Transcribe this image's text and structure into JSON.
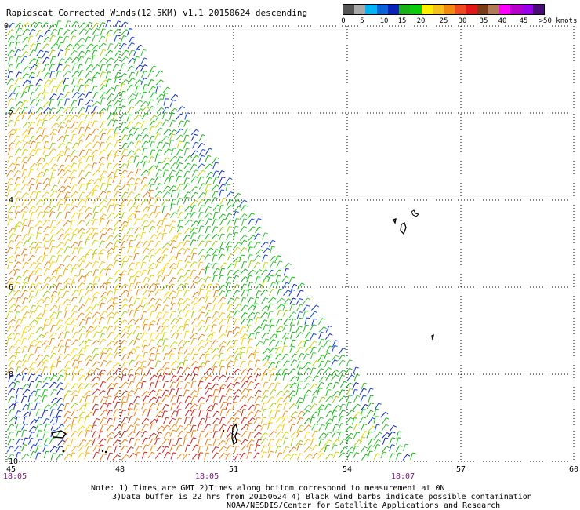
{
  "title": "Rapidscat Corrected Winds(12.5KM) v1.1 20150624 descending",
  "colorbar": {
    "colors": [
      "#555555",
      "#a9a9a9",
      "#00b3f5",
      "#0a62d6",
      "#0b22b6",
      "#19b019",
      "#0dca0d",
      "#ffee00",
      "#f4c21a",
      "#f28a12",
      "#ee4b20",
      "#e01818",
      "#7a3b1a",
      "#b07b58",
      "#ff00ff",
      "#b400c8",
      "#9a00e8",
      "#4a0a7a"
    ],
    "labels": [
      "0",
      "5",
      "10",
      "15",
      "20",
      "25",
      "30",
      "35",
      "40",
      "45",
      ">50 knots"
    ]
  },
  "axes": {
    "x_labels": [
      "45",
      "48",
      "51",
      "54",
      "57",
      "60"
    ],
    "y_labels": [
      "0",
      "-2",
      "-4",
      "-6",
      "-8",
      "-10"
    ]
  },
  "pass_times": [
    "18:05",
    "18:05",
    "18:07"
  ],
  "notes": {
    "line1": "Note: 1) Times are GMT 2)Times along bottom correspond to measurement at 0N",
    "line2": "3)Data buffer is 22 hrs from 20150624 4) Black wind barbs indicate possible contamination",
    "line3": "NOAA/NESDIS/Center for Satellite Applications and Research"
  }
}
